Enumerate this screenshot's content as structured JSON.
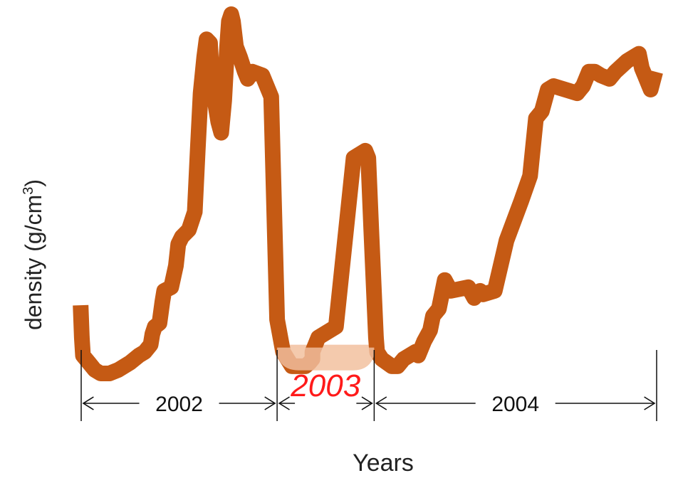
{
  "chart_data": {
    "type": "line",
    "title": "",
    "xlabel": "Years",
    "ylabel": "density (g/cm",
    "ylabel_superscript": "3",
    "ylabel_close": ")",
    "x_unit": "fraction of the three-year span (0 = start of 2002, 1 = end of 2004)",
    "y_unit": "relative density, 0 = lowest plotted value, 1 = highest",
    "series": [
      {
        "color": "#c55a14",
        "x": [
          0.016,
          0.018,
          0.02,
          0.03,
          0.04,
          0.05,
          0.065,
          0.08,
          0.1,
          0.115,
          0.125,
          0.135,
          0.138,
          0.142,
          0.15,
          0.155,
          0.158,
          0.17,
          0.178,
          0.182,
          0.188,
          0.2,
          0.21,
          0.215,
          0.22,
          0.226,
          0.23,
          0.236,
          0.24,
          0.25,
          0.255,
          0.26,
          0.265,
          0.268,
          0.272,
          0.275,
          0.28,
          0.287,
          0.295,
          0.3,
          0.308,
          0.325,
          0.34,
          0.35,
          0.36,
          0.375,
          0.398,
          0.405,
          0.41,
          0.41,
          0.42,
          0.45,
          0.48,
          0.5,
          0.505,
          0.51,
          0.518,
          0.52,
          0.528,
          0.545,
          0.555,
          0.565,
          0.585,
          0.59,
          0.6,
          0.61,
          0.615,
          0.625,
          0.63,
          0.635,
          0.645,
          0.675,
          0.685,
          0.695,
          0.7,
          0.72,
          0.74,
          0.765,
          0.78,
          0.79,
          0.8,
          0.81,
          0.82,
          0.86,
          0.865,
          0.87,
          0.88,
          0.89,
          0.9,
          0.915,
          0.925,
          0.945,
          0.965,
          0.97,
          0.975,
          0.985,
          0.993
        ],
        "y": [
          0.19,
          0.1,
          0.05,
          0.03,
          0.01,
          0.0,
          0.0,
          0.01,
          0.03,
          0.05,
          0.06,
          0.08,
          0.11,
          0.13,
          0.14,
          0.2,
          0.23,
          0.24,
          0.3,
          0.36,
          0.38,
          0.4,
          0.45,
          0.62,
          0.78,
          0.88,
          0.93,
          0.92,
          0.8,
          0.7,
          0.67,
          0.76,
          0.91,
          0.98,
          1.0,
          0.98,
          0.91,
          0.88,
          0.84,
          0.82,
          0.84,
          0.83,
          0.77,
          0.15,
          0.06,
          0.02,
          0.02,
          0.03,
          0.04,
          0.06,
          0.1,
          0.13,
          0.6,
          0.62,
          0.6,
          0.4,
          0.1,
          0.06,
          0.04,
          0.02,
          0.02,
          0.04,
          0.06,
          0.05,
          0.09,
          0.12,
          0.16,
          0.18,
          0.22,
          0.26,
          0.23,
          0.24,
          0.21,
          0.23,
          0.22,
          0.23,
          0.37,
          0.48,
          0.55,
          0.71,
          0.73,
          0.79,
          0.8,
          0.78,
          0.79,
          0.8,
          0.84,
          0.84,
          0.83,
          0.82,
          0.84,
          0.87,
          0.89,
          0.85,
          0.83,
          0.79,
          0.84
        ]
      }
    ],
    "year_periods": [
      {
        "label": "2002",
        "start": 0.0,
        "end": 0.35,
        "highlight": false
      },
      {
        "label": "2003",
        "start": 0.35,
        "end": 0.515,
        "highlight": true
      },
      {
        "label": "2004",
        "start": 0.515,
        "end": 1.0,
        "highlight": false
      }
    ],
    "highlight_band": {
      "start": 0.35,
      "end": 0.515,
      "depth": 0.08,
      "color": "#f4c9ad"
    },
    "colors": {
      "line": "#c55a14",
      "highlight_label": "#ff1a1a",
      "text": "#111111",
      "axis_title": "#222222"
    },
    "grid": false,
    "legend": "none"
  }
}
